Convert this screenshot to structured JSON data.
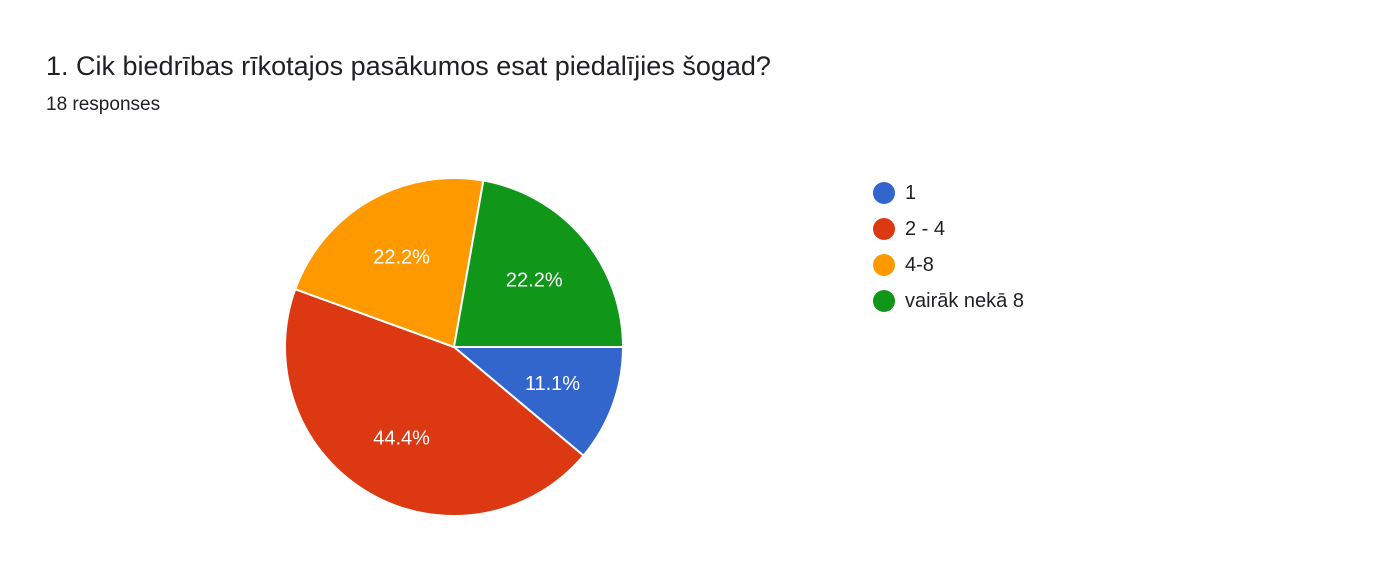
{
  "question": {
    "title": "1. Cik biedrības rīkotajos pasākumos esat piedalījies šogad?",
    "responses": "18 responses"
  },
  "chart_data": {
    "type": "pie",
    "title": "1. Cik biedrības rīkotajos pasākumos esat piedalījies šogad?",
    "categories": [
      "1",
      "2 - 4",
      "4-8",
      "vairāk nekā 8"
    ],
    "values": [
      11.1,
      44.4,
      22.2,
      22.2
    ],
    "value_labels": [
      "11.1%",
      "44.4%",
      "22.2%",
      "22.2%"
    ],
    "colors": [
      "#3366cc",
      "#dc3912",
      "#ff9900",
      "#109618"
    ],
    "legend_position": "right"
  }
}
